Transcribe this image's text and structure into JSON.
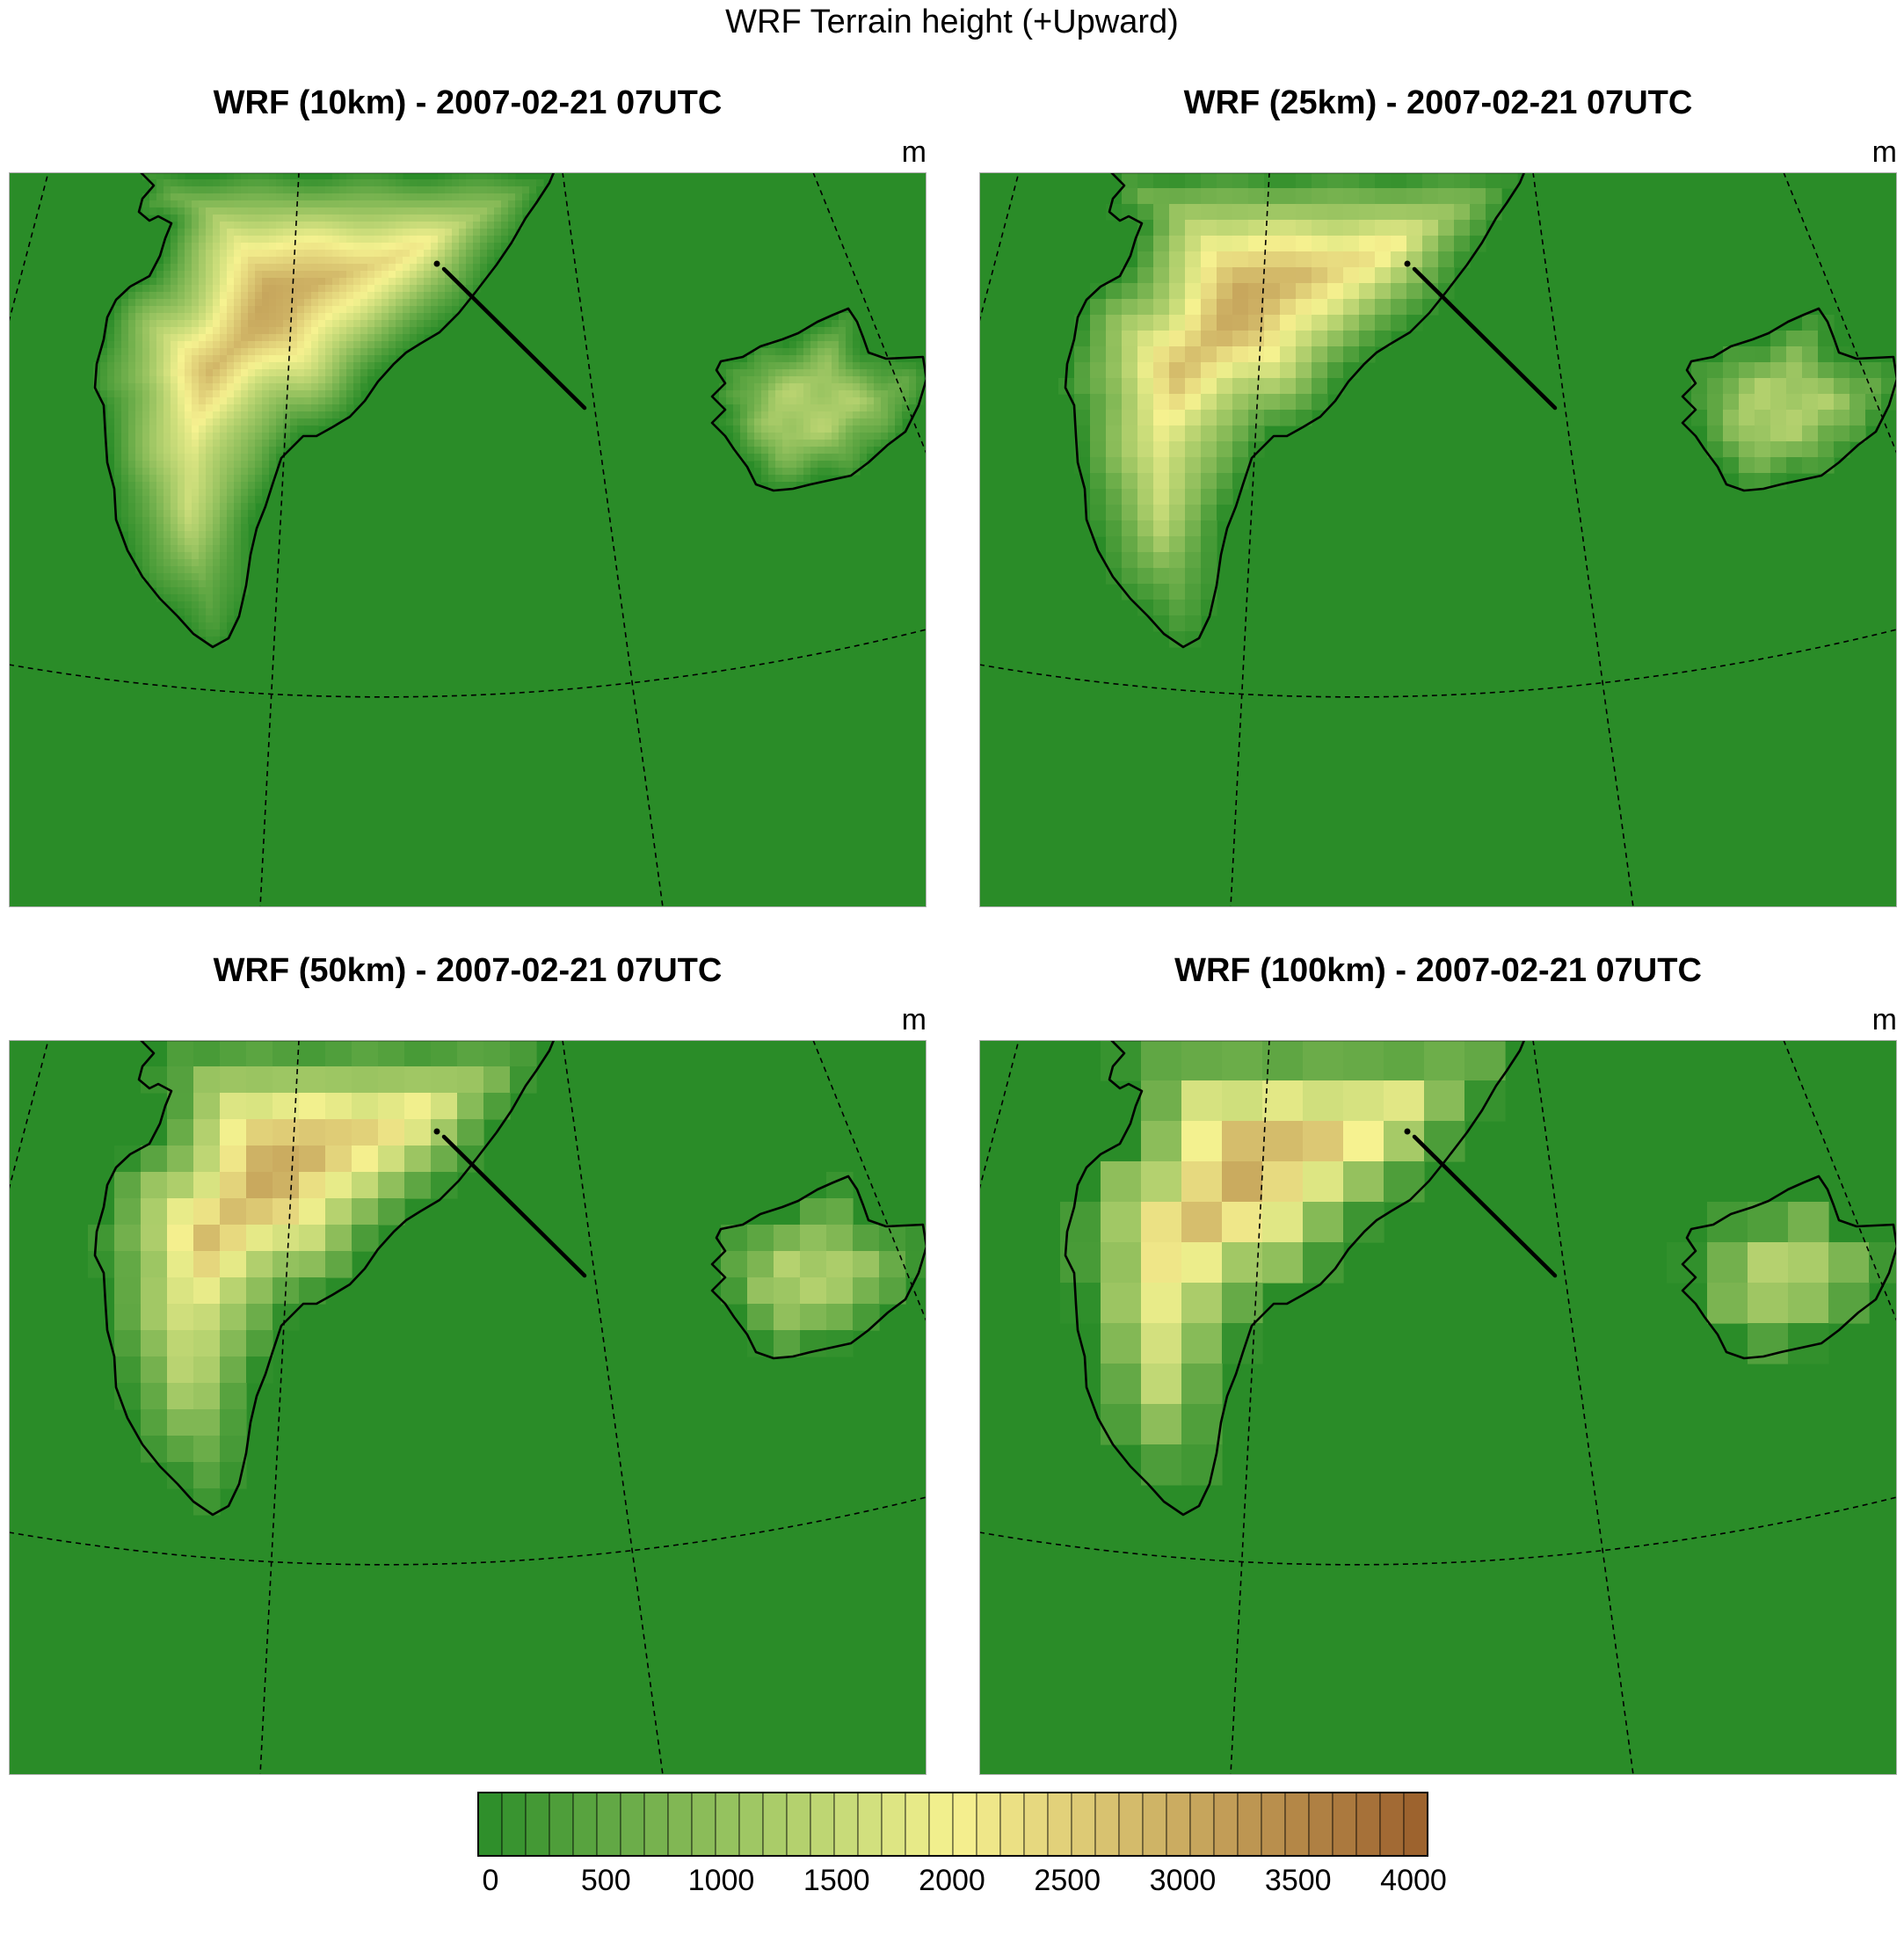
{
  "title": "WRF Terrain height (+Upward)",
  "panels": [
    {
      "title": "WRF (10km) - 2007-02-21 07UTC",
      "units": "m",
      "resolution_km": 10
    },
    {
      "title": "WRF (25km) - 2007-02-21 07UTC",
      "units": "m",
      "resolution_km": 25
    },
    {
      "title": "WRF (50km) - 2007-02-21 07UTC",
      "units": "m",
      "resolution_km": 50
    },
    {
      "title": "WRF (100km) - 2007-02-21 07UTC",
      "units": "m",
      "resolution_km": 100
    }
  ],
  "colorbar": {
    "min": 0,
    "max": 4000,
    "interval": 100,
    "tick_labels": [
      "0",
      "500",
      "1000",
      "1500",
      "2000",
      "2500",
      "3000",
      "3500",
      "4000"
    ],
    "colors": {
      "low": "#2a8c28",
      "mid": "#f6f290",
      "high": "#9b5f2c",
      "outline": "#000000"
    }
  },
  "map": {
    "background_color": "#2a8c28",
    "coastline_color": "#000000",
    "gridline_style": "dashed",
    "features": [
      "greenland-coastline",
      "iceland-coastline",
      "cross-section-line"
    ]
  }
}
